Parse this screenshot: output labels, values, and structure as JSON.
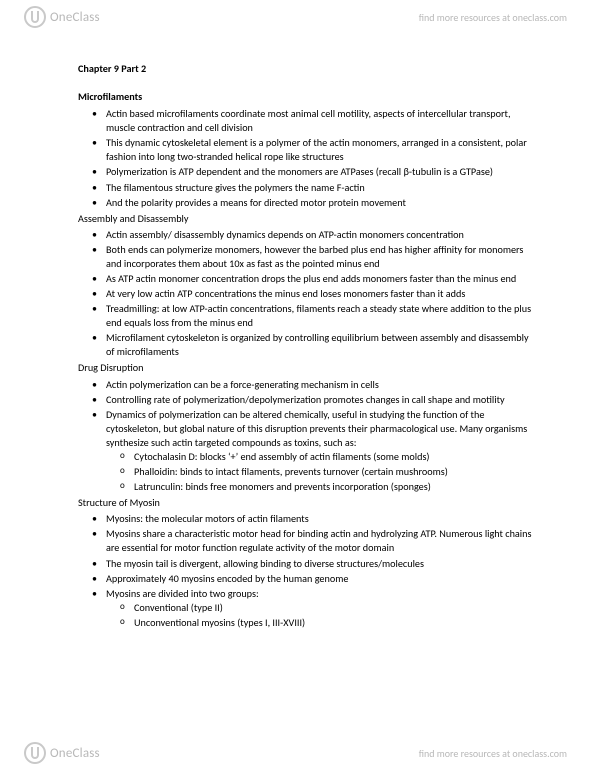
{
  "brand": {
    "name": "OneClass",
    "tagline": "find more resources at oneclass.com"
  },
  "chapter": "Chapter 9 Part 2",
  "sections": [
    {
      "heading": "Microfilaments",
      "bullets": [
        "Actin based microfilaments coordinate most animal cell motility, aspects of intercellular transport, muscle contraction and cell division",
        "This dynamic cytoskeletal element is a polymer of the actin monomers, arranged in a consistent, polar fashion into long two-stranded helical rope like structures",
        "Polymerization is ATP dependent and the monomers are ATPases (recall β-tubulin is a GTPase)",
        "The filamentous structure gives the polymers the name F-actin",
        "And the polarity provides a means for directed motor protein movement"
      ]
    },
    {
      "sub": "Assembly and Disassembly",
      "bullets": [
        "Actin assembly/ disassembly dynamics depends on ATP-actin monomers concentration",
        "Both ends can polymerize monomers, however the barbed plus end has higher affinity for monomers and incorporates them about 10x as fast as the pointed minus end",
        "As ATP actin monomer concentration drops the plus end adds monomers faster than the minus end",
        "At very low actin ATP concentrations the minus end loses monomers faster than it adds",
        "Treadmilling: at low ATP-actin concentrations, filaments reach a steady state where addition to the plus end equals loss from the minus end",
        "Microfilament cytoskeleton is organized by controlling equilibrium between assembly and disassembly of microfilaments"
      ]
    },
    {
      "sub": "Drug Disruption",
      "bullets": [
        "Actin polymerization can be a force-generating mechanism in cells",
        "Controlling rate of polymerization/depolymerization promotes changes in call shape and motility",
        {
          "text": "Dynamics of polymerization can be altered chemically, useful in studying the function of the cytoskeleton, but global nature of this disruption prevents their pharmacological use.  Many organisms synthesize such actin targeted compounds as toxins, such as:",
          "children": [
            "Cytochalasin D: blocks ‘+’ end assembly of actin filaments (some molds)",
            "Phalloidin: binds to intact filaments, prevents turnover (certain mushrooms)",
            "Latrunculin: binds free monomers and prevents incorporation (sponges)"
          ]
        }
      ]
    },
    {
      "sub": "Structure of Myosin",
      "bullets": [
        "Myosins: the molecular motors of actin filaments",
        "Myosins share a characteristic motor head for binding actin and hydrolyzing ATP. Numerous light chains are essential for motor function regulate activity of the motor domain",
        "The myosin tail is divergent, allowing binding to diverse structures/molecules",
        "Approximately 40 myosins encoded by the human genome",
        {
          "text": "Myosins are divided into two groups:",
          "children": [
            "Conventional (type II)",
            "Unconventional myosins (types I, III-XVIII)"
          ]
        }
      ]
    }
  ]
}
